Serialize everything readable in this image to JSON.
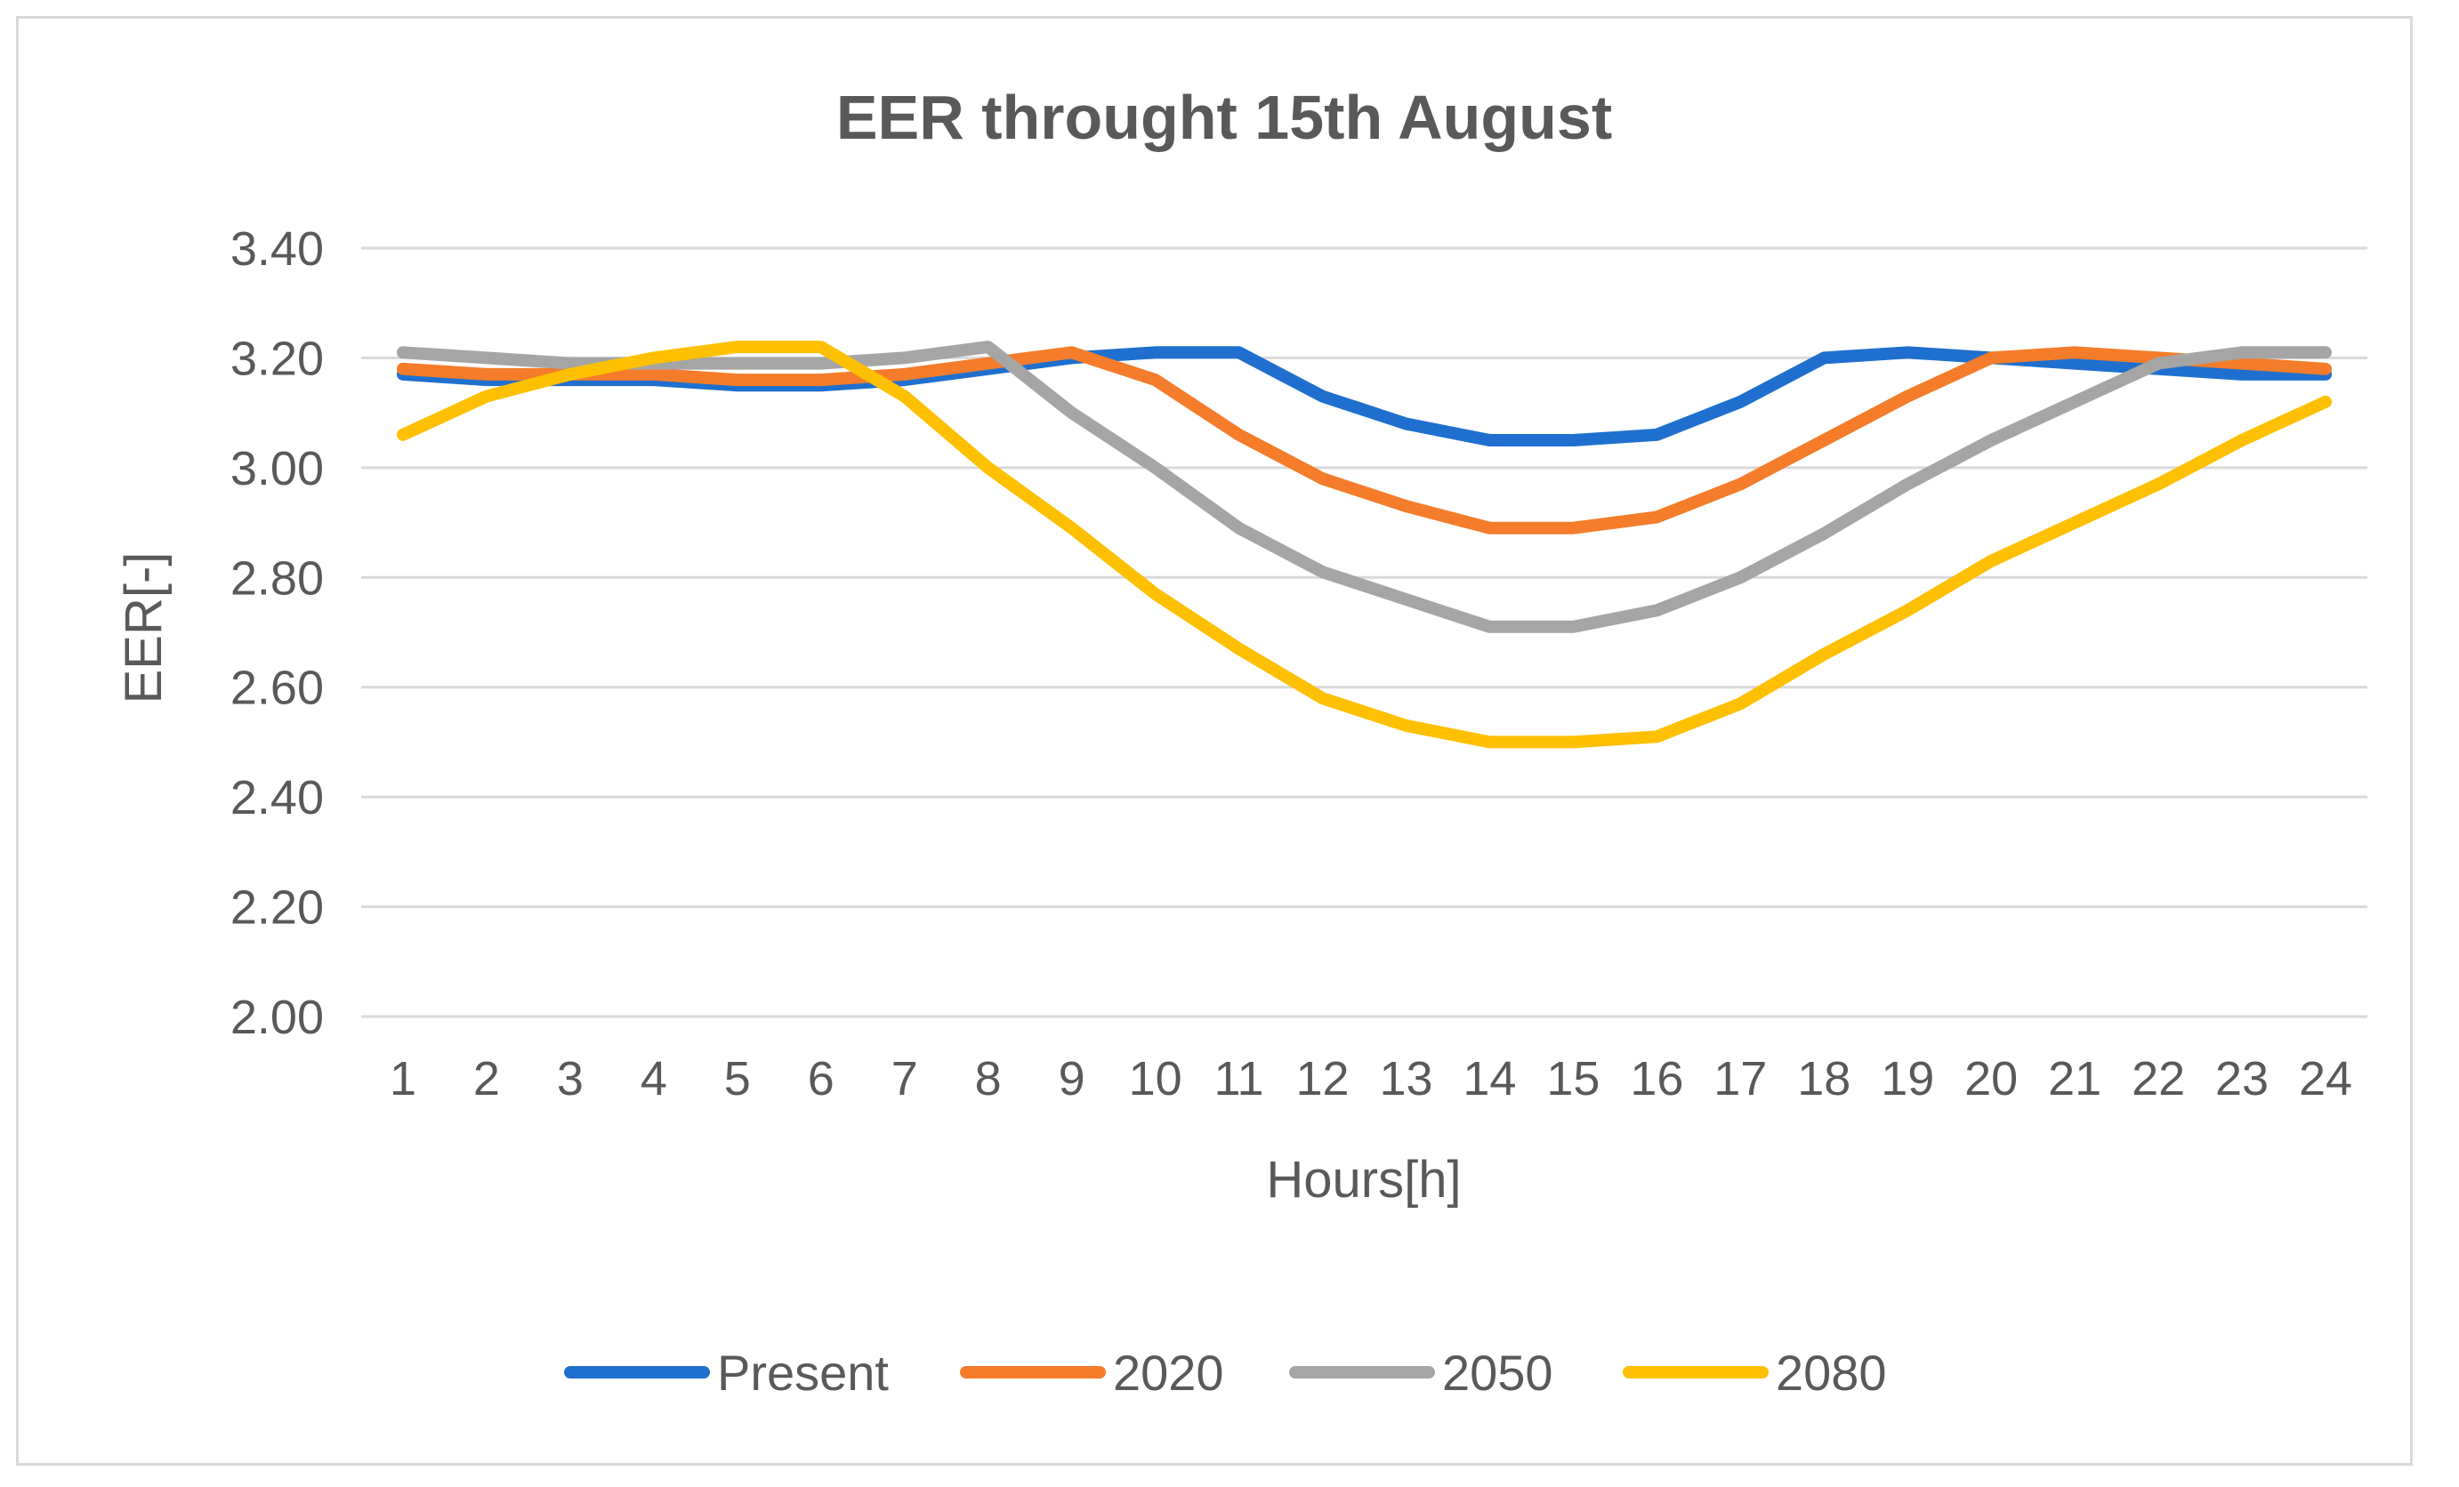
{
  "chart_data": {
    "type": "line",
    "title": "EER throught 15th August",
    "xlabel": "Hours[h]",
    "ylabel": "EER[-]",
    "ylim": [
      2.0,
      3.4
    ],
    "ytick_step": 0.2,
    "yticks": [
      "2.00",
      "2.20",
      "2.40",
      "2.60",
      "2.80",
      "3.00",
      "3.20",
      "3.40"
    ],
    "grid": true,
    "legend": "bottom",
    "categories": [
      "1",
      "2",
      "3",
      "4",
      "5",
      "6",
      "7",
      "8",
      "9",
      "10",
      "11",
      "12",
      "13",
      "14",
      "15",
      "16",
      "17",
      "18",
      "19",
      "20",
      "21",
      "22",
      "23",
      "24"
    ],
    "series": [
      {
        "name": "Present",
        "color": "#1f6fcf",
        "values": [
          3.17,
          3.16,
          3.16,
          3.16,
          3.15,
          3.15,
          3.16,
          3.18,
          3.2,
          3.21,
          3.21,
          3.13,
          3.08,
          3.05,
          3.05,
          3.06,
          3.12,
          3.2,
          3.21,
          3.2,
          3.19,
          3.18,
          3.17,
          3.17
        ]
      },
      {
        "name": "2020",
        "color": "#f47c2a",
        "values": [
          3.18,
          3.17,
          3.17,
          3.17,
          3.16,
          3.16,
          3.17,
          3.19,
          3.21,
          3.16,
          3.06,
          2.98,
          2.93,
          2.89,
          2.89,
          2.91,
          2.97,
          3.05,
          3.13,
          3.2,
          3.21,
          3.2,
          3.19,
          3.18
        ]
      },
      {
        "name": "2050",
        "color": "#a5a5a5",
        "values": [
          3.21,
          3.2,
          3.19,
          3.19,
          3.19,
          3.19,
          3.2,
          3.22,
          3.1,
          3.0,
          2.89,
          2.81,
          2.76,
          2.71,
          2.71,
          2.74,
          2.8,
          2.88,
          2.97,
          3.05,
          3.12,
          3.19,
          3.21,
          3.21
        ]
      },
      {
        "name": "2080",
        "color": "#fec000",
        "values": [
          3.06,
          3.13,
          3.17,
          3.2,
          3.22,
          3.22,
          3.13,
          3.0,
          2.89,
          2.77,
          2.67,
          2.58,
          2.53,
          2.5,
          2.5,
          2.51,
          2.57,
          2.66,
          2.74,
          2.83,
          2.9,
          2.97,
          3.05,
          3.12
        ]
      }
    ]
  }
}
